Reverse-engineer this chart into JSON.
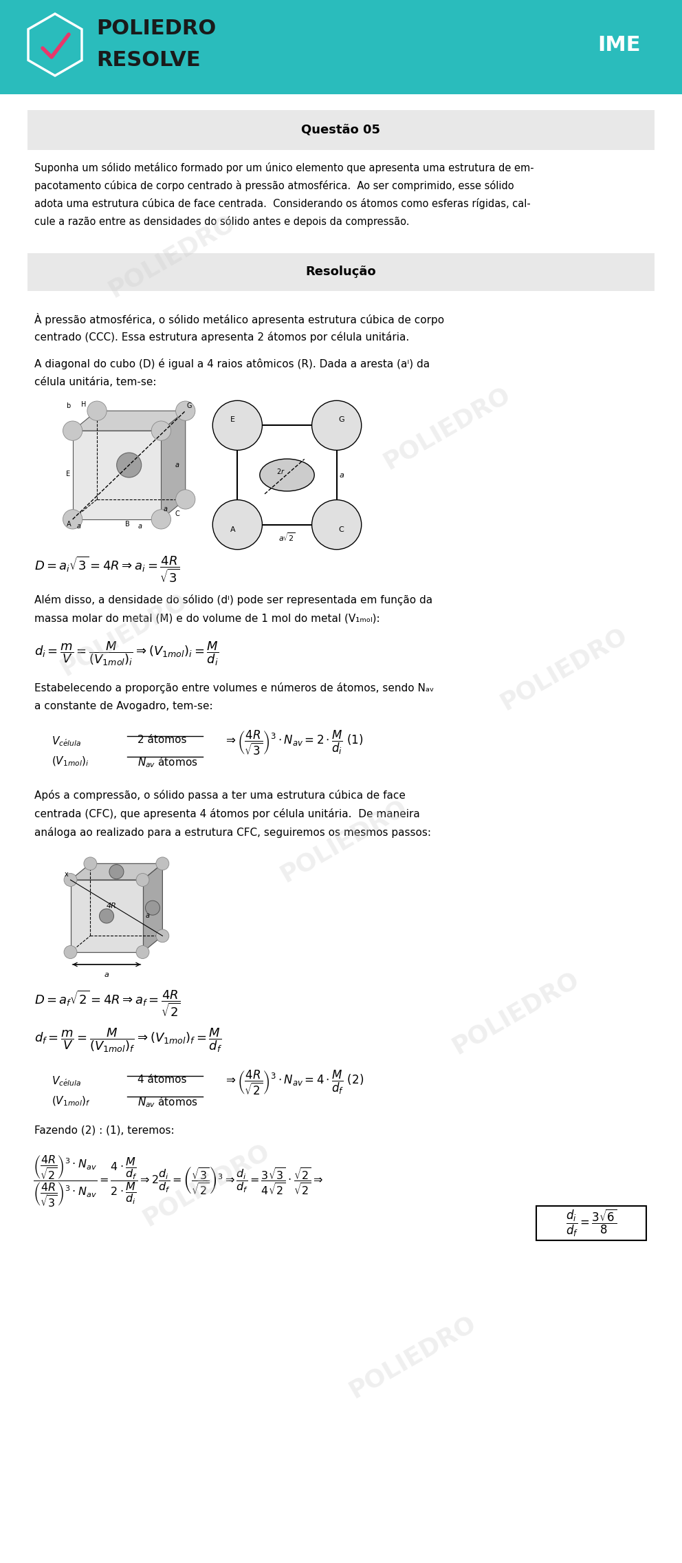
{
  "header_bg": "#2ABCBC",
  "header_text1": "POLIEDRO",
  "header_text2": "RESOLVE",
  "header_label": "IME",
  "question_title": "Questão 05",
  "question_text_lines": [
    "Suponha um sólido metálico formado por um único elemento que apresenta uma estrutura de em-",
    "pacotamento cúbica de corpo centrado à pressão atmosférica.  Ao ser comprimido, esse sólido",
    "adota uma estrutura cúbica de face centrada.  Considerando os átomos como esferas rígidas, cal-",
    "cule a razão entre as densidades do sólido antes e depois da compressão."
  ],
  "resolucao_title": "Resolução",
  "text1_lines": [
    "À pressão atmosférica, o sólido metálico apresenta estrutura cúbica de corpo",
    "centrado (CCC). Essa estrutura apresenta 2 átomos por célula unitária."
  ],
  "text2_lines": [
    "A diagonal do cubo (D) é igual a 4 raios atômicos (R). Dada a aresta (aᴵ) da",
    "célula unitária, tem-se:"
  ],
  "text3_lines": [
    "Além disso, a densidade do sólido (dᴵ) pode ser representada em função da",
    "massa molar do metal (M) e do volume de 1 mol do metal (V₁ₘₒₗ):"
  ],
  "text4_lines": [
    "Estabelecendo a proporção entre volumes e números de átomos, sendo Nₐᵥ",
    "a constante de Avogadro, tem-se:"
  ],
  "text5_lines": [
    "Após a compressão, o sólido passa a ter uma estrutura cúbica de face",
    "centrada (CFC), que apresenta 4 átomos por célula unitária.  De maneira",
    "análoga ao realizado para a estrutura CFC, seguiremos os mesmos passos:"
  ],
  "text6": "Fazendo (2) : (1), teremos:",
  "watermark": "POLIEDRO",
  "bg_color": "#FFFFFF",
  "gray_box_color": "#E8E8E8",
  "text_color": "#000000",
  "teal_color": "#2ABCBC"
}
